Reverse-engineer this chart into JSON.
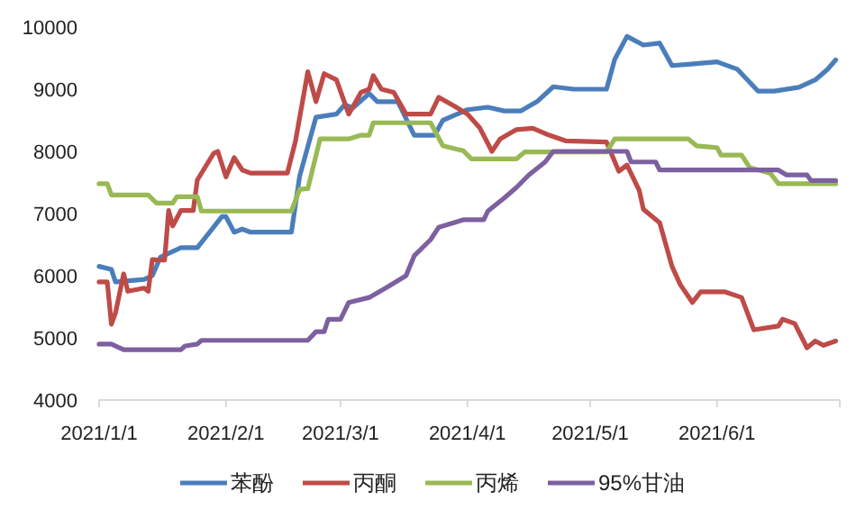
{
  "chart_data": {
    "type": "line",
    "xlim": [
      "2021-01-01",
      "2021-07-01"
    ],
    "xticks": [
      {
        "value": "2021-01-01",
        "label": "2021/1/1"
      },
      {
        "value": "2021-02-01",
        "label": "2021/2/1"
      },
      {
        "value": "2021-03-01",
        "label": "2021/3/1"
      },
      {
        "value": "2021-04-01",
        "label": "2021/4/1"
      },
      {
        "value": "2021-05-01",
        "label": "2021/5/1"
      },
      {
        "value": "2021-06-01",
        "label": "2021/6/1"
      },
      {
        "value": "2021-07-01",
        "label": null
      }
    ],
    "ylim": [
      4000,
      10000
    ],
    "yticks": [
      4000,
      5000,
      6000,
      7000,
      8000,
      9000,
      10000
    ],
    "legend": "bottom",
    "marker": "none",
    "line_style": "solid",
    "series": [
      {
        "name": "苯酚",
        "color": "#4a7ebb",
        "x": [
          "2021-01-01",
          "2021-01-04",
          "2021-01-05",
          "2021-01-12",
          "2021-01-14",
          "2021-01-16",
          "2021-01-21",
          "2021-01-25",
          "2021-01-31",
          "2021-02-01",
          "2021-02-03",
          "2021-02-05",
          "2021-02-07",
          "2021-02-17",
          "2021-02-19",
          "2021-02-23",
          "2021-02-28",
          "2021-03-02",
          "2021-03-04",
          "2021-03-08",
          "2021-03-10",
          "2021-03-15",
          "2021-03-19",
          "2021-03-24",
          "2021-03-26",
          "2021-04-01",
          "2021-04-06",
          "2021-04-10",
          "2021-04-14",
          "2021-04-18",
          "2021-04-22",
          "2021-04-27",
          "2021-05-05",
          "2021-05-07",
          "2021-05-10",
          "2021-05-14",
          "2021-05-18",
          "2021-05-21",
          "2021-05-25",
          "2021-06-01",
          "2021-06-06",
          "2021-06-11",
          "2021-06-15",
          "2021-06-21",
          "2021-06-25",
          "2021-06-28",
          "2021-06-30"
        ],
        "values": [
          6150,
          6100,
          5900,
          5940,
          6000,
          6300,
          6450,
          6450,
          6950,
          6950,
          6700,
          6750,
          6700,
          6700,
          7600,
          8550,
          8600,
          8750,
          8700,
          8930,
          8800,
          8800,
          8260,
          8260,
          8500,
          8670,
          8710,
          8650,
          8650,
          8800,
          9040,
          9000,
          9000,
          9480,
          9850,
          9710,
          9740,
          9380,
          9400,
          9440,
          9320,
          8970,
          8970,
          9030,
          9150,
          9320,
          9470
        ]
      },
      {
        "name": "丙酮",
        "color": "#be4b48",
        "x": [
          "2021-01-01",
          "2021-01-03",
          "2021-01-04",
          "2021-01-05",
          "2021-01-07",
          "2021-01-08",
          "2021-01-12",
          "2021-01-13",
          "2021-01-14",
          "2021-01-17",
          "2021-01-18",
          "2021-01-19",
          "2021-01-21",
          "2021-01-24",
          "2021-01-25",
          "2021-01-29",
          "2021-01-30",
          "2021-02-01",
          "2021-02-03",
          "2021-02-05",
          "2021-02-07",
          "2021-02-16",
          "2021-02-18",
          "2021-02-21",
          "2021-02-23",
          "2021-02-25",
          "2021-02-28",
          "2021-03-03",
          "2021-03-06",
          "2021-03-08",
          "2021-03-09",
          "2021-03-11",
          "2021-03-14",
          "2021-03-17",
          "2021-03-23",
          "2021-03-25",
          "2021-03-29",
          "2021-04-01",
          "2021-04-04",
          "2021-04-07",
          "2021-04-09",
          "2021-04-13",
          "2021-04-17",
          "2021-04-21",
          "2021-04-25",
          "2021-05-05",
          "2021-05-08",
          "2021-05-10",
          "2021-05-13",
          "2021-05-14",
          "2021-05-18",
          "2021-05-21",
          "2021-05-23",
          "2021-05-26",
          "2021-05-28",
          "2021-06-03",
          "2021-06-07",
          "2021-06-10",
          "2021-06-16",
          "2021-06-17",
          "2021-06-20",
          "2021-06-23",
          "2021-06-25",
          "2021-06-27",
          "2021-06-30"
        ],
        "values": [
          5900,
          5900,
          5220,
          5400,
          6030,
          5750,
          5800,
          5750,
          6260,
          6250,
          7050,
          6800,
          7050,
          7050,
          7540,
          7970,
          8000,
          7590,
          7900,
          7700,
          7650,
          7650,
          8170,
          9280,
          8800,
          9250,
          9150,
          8600,
          8950,
          9000,
          9220,
          9000,
          8950,
          8600,
          8600,
          8870,
          8720,
          8600,
          8380,
          8000,
          8200,
          8350,
          8370,
          8260,
          8170,
          8150,
          7680,
          7780,
          7370,
          7070,
          6850,
          6150,
          5860,
          5570,
          5740,
          5740,
          5650,
          5130,
          5190,
          5300,
          5230,
          4840,
          4950,
          4880,
          4950
        ]
      },
      {
        "name": "丙烯",
        "color": "#98b954",
        "x": [
          "2021-01-01",
          "2021-01-03",
          "2021-01-04",
          "2021-01-13",
          "2021-01-15",
          "2021-01-19",
          "2021-01-20",
          "2021-01-25",
          "2021-01-26",
          "2021-02-17",
          "2021-02-19",
          "2021-02-21",
          "2021-02-24",
          "2021-03-03",
          "2021-03-06",
          "2021-03-08",
          "2021-03-09",
          "2021-03-23",
          "2021-03-26",
          "2021-03-31",
          "2021-04-02",
          "2021-04-13",
          "2021-04-15",
          "2021-05-05",
          "2021-05-07",
          "2021-05-25",
          "2021-05-27",
          "2021-06-01",
          "2021-06-02",
          "2021-06-07",
          "2021-06-09",
          "2021-06-14",
          "2021-06-16",
          "2021-06-30"
        ],
        "values": [
          7480,
          7480,
          7300,
          7300,
          7170,
          7170,
          7270,
          7270,
          7040,
          7040,
          7390,
          7400,
          8200,
          8200,
          8260,
          8260,
          8460,
          8460,
          8090,
          8010,
          7880,
          7880,
          7990,
          7990,
          8200,
          8200,
          8090,
          8060,
          7940,
          7940,
          7740,
          7650,
          7480,
          7480
        ]
      },
      {
        "name": "95%甘油",
        "color": "#7d60a0",
        "x": [
          "2021-01-01",
          "2021-01-04",
          "2021-01-07",
          "2021-01-21",
          "2021-01-22",
          "2021-01-25",
          "2021-01-26",
          "2021-02-21",
          "2021-02-23",
          "2021-02-25",
          "2021-02-26",
          "2021-03-01",
          "2021-03-03",
          "2021-03-08",
          "2021-03-12",
          "2021-03-17",
          "2021-03-19",
          "2021-03-23",
          "2021-03-25",
          "2021-03-31",
          "2021-04-05",
          "2021-04-06",
          "2021-04-10",
          "2021-04-13",
          "2021-04-16",
          "2021-04-20",
          "2021-04-22",
          "2021-05-10",
          "2021-05-11",
          "2021-05-17",
          "2021-05-18",
          "2021-06-16",
          "2021-06-18",
          "2021-06-23",
          "2021-06-24",
          "2021-06-30"
        ],
        "values": [
          4900,
          4900,
          4810,
          4810,
          4870,
          4900,
          4960,
          4960,
          5100,
          5100,
          5300,
          5300,
          5570,
          5650,
          5800,
          6000,
          6320,
          6580,
          6780,
          6900,
          6900,
          7040,
          7250,
          7420,
          7620,
          7830,
          8000,
          8000,
          7830,
          7830,
          7700,
          7700,
          7620,
          7620,
          7530,
          7530
        ]
      }
    ]
  }
}
